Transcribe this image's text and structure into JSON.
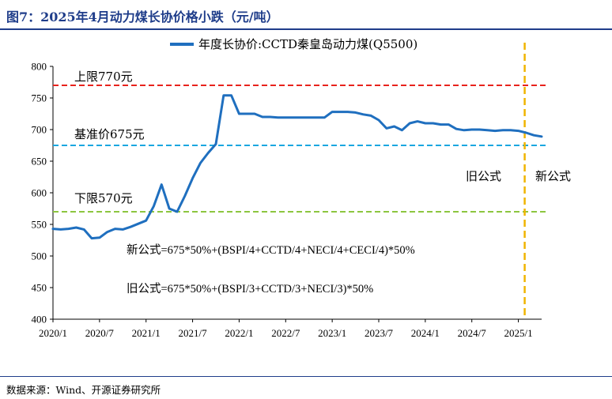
{
  "title": "图7：2025年4月动力煤长协价格小跌（元/吨）",
  "source": "数据来源：Wind、开源证券研究所",
  "chart_data": {
    "type": "line",
    "legend": [
      "年度长协价:CCTD秦皇岛动力煤(Q5500)"
    ],
    "x_ticks": [
      "2020/1",
      "2020/7",
      "2021/1",
      "2021/7",
      "2022/1",
      "2022/7",
      "2023/1",
      "2023/7",
      "2024/1",
      "2024/7",
      "2025/1"
    ],
    "y_ticks": [
      "400",
      "450",
      "500",
      "550",
      "600",
      "650",
      "700",
      "750",
      "800"
    ],
    "ylim": [
      400,
      800
    ],
    "xlim": [
      "2020/1",
      "2025/4"
    ],
    "series": [
      {
        "name": "年度长协价:CCTD秦皇岛动力煤(Q5500)",
        "color": "#1f6fbf",
        "x": [
          "2020/1",
          "2020/2",
          "2020/3",
          "2020/4",
          "2020/5",
          "2020/6",
          "2020/7",
          "2020/8",
          "2020/9",
          "2020/10",
          "2020/11",
          "2020/12",
          "2021/1",
          "2021/2",
          "2021/3",
          "2021/4",
          "2021/5",
          "2021/6",
          "2021/7",
          "2021/8",
          "2021/9",
          "2021/10",
          "2021/11",
          "2021/12",
          "2022/1",
          "2022/2",
          "2022/3",
          "2022/4",
          "2022/5",
          "2022/6",
          "2022/7",
          "2022/8",
          "2022/9",
          "2022/10",
          "2022/11",
          "2022/12",
          "2023/1",
          "2023/2",
          "2023/3",
          "2023/4",
          "2023/5",
          "2023/6",
          "2023/7",
          "2023/8",
          "2023/9",
          "2023/10",
          "2023/11",
          "2023/12",
          "2024/1",
          "2024/2",
          "2024/3",
          "2024/4",
          "2024/5",
          "2024/6",
          "2024/7",
          "2024/8",
          "2024/9",
          "2024/10",
          "2024/11",
          "2024/12",
          "2025/1",
          "2025/2",
          "2025/3",
          "2025/4"
        ],
        "values": [
          543,
          542,
          543,
          545,
          542,
          528,
          529,
          538,
          543,
          542,
          546,
          551,
          556,
          579,
          613,
          575,
          570,
          595,
          623,
          647,
          663,
          677,
          754,
          754,
          725,
          725,
          725,
          720,
          720,
          719,
          719,
          719,
          719,
          719,
          719,
          719,
          728,
          728,
          728,
          727,
          724,
          722,
          715,
          702,
          705,
          699,
          710,
          713,
          710,
          710,
          708,
          708,
          701,
          699,
          700,
          700,
          699,
          698,
          699,
          699,
          698,
          695,
          691,
          689
        ]
      }
    ],
    "reference_lines": [
      {
        "label": "上限770元",
        "value": 770,
        "color": "#e8231c"
      },
      {
        "label": "基准价675元",
        "value": 675,
        "color": "#1aa7e0"
      },
      {
        "label": "下限570元",
        "value": 570,
        "color": "#8cc63f"
      }
    ],
    "vertical_marker": {
      "x": "2025/1",
      "color": "#f0b400",
      "left_label": "旧公式",
      "right_label": "新公式"
    },
    "annotations": [
      "新公式=675*50%+(BSPI/4+CCTD/4+NECI/4+CECI/4)*50%",
      "旧公式=675*50%+(BSPI/3+CCTD/3+NECI/3)*50%"
    ]
  }
}
